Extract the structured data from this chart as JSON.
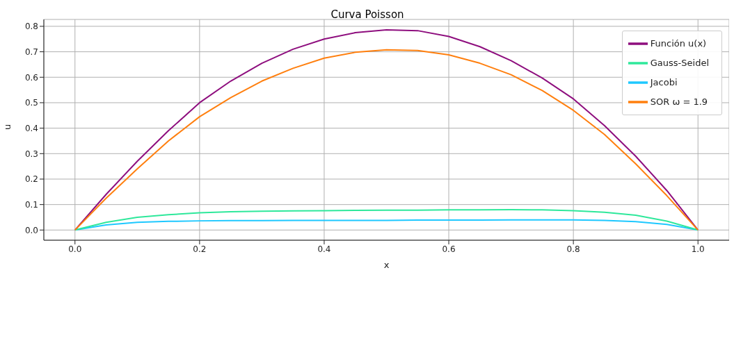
{
  "chart_data": {
    "type": "line",
    "title": "Curva Poisson",
    "xlabel": "x",
    "ylabel": "u",
    "x": [
      0,
      0.05,
      0.1,
      0.15,
      0.2,
      0.25,
      0.3,
      0.35,
      0.4,
      0.45,
      0.5,
      0.55,
      0.6,
      0.65,
      0.7,
      0.75,
      0.8,
      0.85,
      0.9,
      0.95,
      1
    ],
    "series": [
      {
        "name": "Función u(x)",
        "color": "#8e0e7e",
        "values": [
          0,
          0.14,
          0.27,
          0.39,
          0.5,
          0.585,
          0.655,
          0.71,
          0.75,
          0.775,
          0.786,
          0.783,
          0.76,
          0.72,
          0.665,
          0.597,
          0.515,
          0.41,
          0.29,
          0.155,
          0
        ]
      },
      {
        "name": "Jacobi",
        "color": "#1ec8ff",
        "values": [
          0,
          0.02,
          0.03,
          0.034,
          0.036,
          0.037,
          0.037,
          0.038,
          0.038,
          0.038,
          0.038,
          0.039,
          0.039,
          0.039,
          0.04,
          0.04,
          0.04,
          0.038,
          0.033,
          0.022,
          0
        ]
      },
      {
        "name": "Gauss-Seidel",
        "color": "#2ee89b",
        "values": [
          0,
          0.03,
          0.05,
          0.06,
          0.068,
          0.072,
          0.074,
          0.075,
          0.076,
          0.077,
          0.078,
          0.078,
          0.079,
          0.079,
          0.08,
          0.079,
          0.076,
          0.07,
          0.058,
          0.035,
          0
        ]
      },
      {
        "name": "SOR ω = 1.9",
        "color": "#ff7f0e",
        "values": [
          0,
          0.125,
          0.24,
          0.35,
          0.445,
          0.52,
          0.585,
          0.635,
          0.675,
          0.698,
          0.708,
          0.705,
          0.688,
          0.655,
          0.61,
          0.548,
          0.47,
          0.375,
          0.26,
          0.135,
          0
        ]
      }
    ],
    "xlim": [
      -0.05,
      1.05
    ],
    "xticks": [
      {
        "value": 0,
        "label": "0.0"
      },
      0.2,
      0.4,
      0.6,
      0.8,
      {
        "value": 1,
        "label": "1.0"
      }
    ],
    "ylim": [
      -0.04,
      0.827
    ],
    "yticks": [
      {
        "value": 0,
        "label": "0.0"
      },
      0.1,
      0.2,
      0.3,
      0.4,
      0.5,
      0.6,
      0.7,
      0.8
    ],
    "grid": true,
    "legend": "top right",
    "marker": "none",
    "line_style": "solid"
  }
}
